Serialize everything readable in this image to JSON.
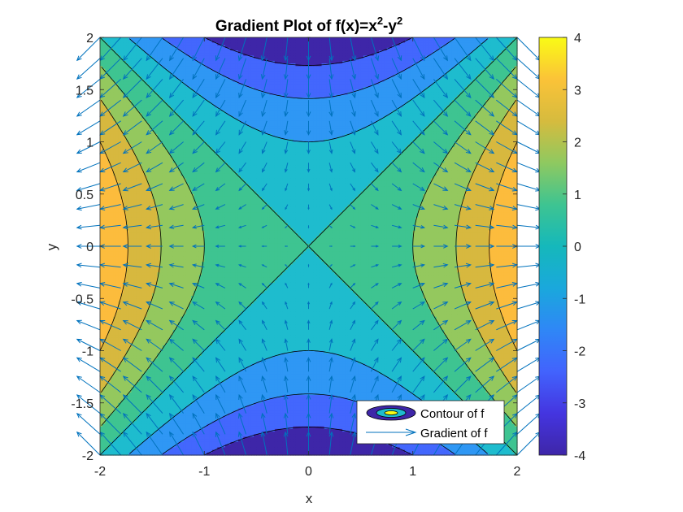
{
  "chart_data": {
    "type": "contour",
    "title": {
      "base": "Gradient Plot of f(x)=x",
      "sup1": "2",
      "mid": "-y",
      "sup2": "2"
    },
    "xlabel": "x",
    "ylabel": "y",
    "function": "x^2-y^2",
    "xlim": [
      -2,
      2
    ],
    "ylim": [
      -2,
      2
    ],
    "x_ticks": [
      "-2",
      "-1",
      "0",
      "1",
      "2"
    ],
    "y_ticks": [
      "-2",
      "-1.5",
      "-1",
      "-0.5",
      "0",
      "0.5",
      "1",
      "1.5",
      "2"
    ],
    "contour_levels": [
      -4,
      -3,
      -2,
      -1,
      0,
      1,
      2,
      3,
      4
    ],
    "colorbar": {
      "range": [
        -4,
        4
      ],
      "ticks": [
        "-4",
        "-3",
        "-2",
        "-1",
        "0",
        "1",
        "2",
        "3",
        "4"
      ]
    },
    "colormap": [
      "#3e26a8",
      "#4367fd",
      "#2f97f4",
      "#1ebcce",
      "#3ec491",
      "#94c85e",
      "#d7b83f",
      "#fcbc3d",
      "#f9fb15"
    ],
    "quiver": {
      "field": "gradient [2x, -2y]",
      "grid_step": 0.2,
      "color": "#0072bd"
    },
    "legend": {
      "position": "bottom-right",
      "entries": [
        "Contour of f",
        "Gradient of f"
      ]
    }
  }
}
